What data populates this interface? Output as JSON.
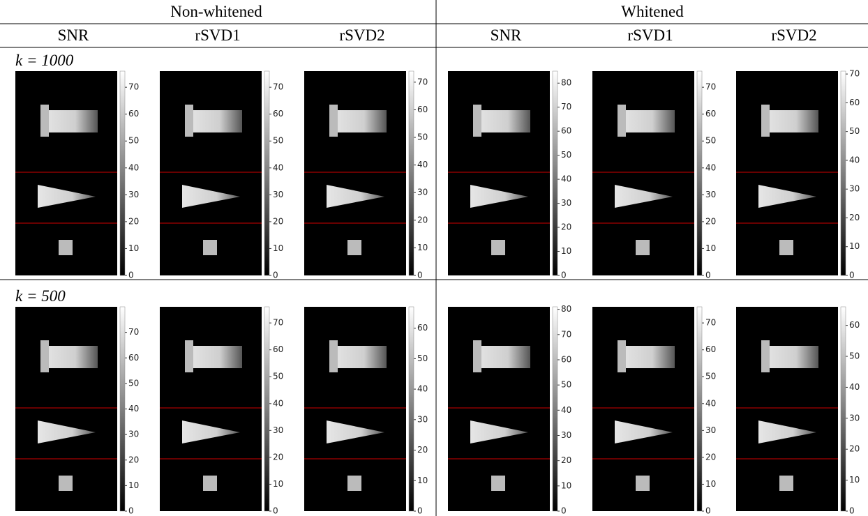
{
  "header": {
    "groups": [
      "Non-whitened",
      "Whitened"
    ],
    "columns": [
      "SNR",
      "rSVD1",
      "rSVD2",
      "SNR",
      "rSVD1",
      "rSVD2"
    ]
  },
  "rows": [
    {
      "label": "k = 1000",
      "panels": [
        {
          "clim": [
            0,
            76
          ],
          "ticks": [
            0,
            10,
            20,
            30,
            40,
            50,
            60,
            70
          ]
        },
        {
          "clim": [
            0,
            76
          ],
          "ticks": [
            0,
            10,
            20,
            30,
            40,
            50,
            60,
            70
          ]
        },
        {
          "clim": [
            0,
            74
          ],
          "ticks": [
            0,
            10,
            20,
            30,
            40,
            50,
            60,
            70
          ]
        },
        {
          "clim": [
            0,
            85
          ],
          "ticks": [
            0,
            10,
            20,
            30,
            40,
            50,
            60,
            70,
            80
          ]
        },
        {
          "clim": [
            0,
            76
          ],
          "ticks": [
            0,
            10,
            20,
            30,
            40,
            50,
            60,
            70
          ]
        },
        {
          "clim": [
            0,
            71
          ],
          "ticks": [
            0,
            10,
            20,
            30,
            40,
            50,
            60,
            70
          ]
        }
      ]
    },
    {
      "label": "k = 500",
      "panels": [
        {
          "clim": [
            0,
            80
          ],
          "ticks": [
            0,
            10,
            20,
            30,
            40,
            50,
            60,
            70
          ]
        },
        {
          "clim": [
            0,
            76
          ],
          "ticks": [
            0,
            10,
            20,
            30,
            40,
            50,
            60,
            70
          ]
        },
        {
          "clim": [
            0,
            67
          ],
          "ticks": [
            0,
            10,
            20,
            30,
            40,
            50,
            60
          ]
        },
        {
          "clim": [
            0,
            81
          ],
          "ticks": [
            0,
            10,
            20,
            30,
            40,
            50,
            60,
            70,
            80
          ]
        },
        {
          "clim": [
            0,
            76
          ],
          "ticks": [
            0,
            10,
            20,
            30,
            40,
            50,
            60,
            70
          ]
        },
        {
          "clim": [
            0,
            66
          ],
          "ticks": [
            0,
            10,
            20,
            30,
            40,
            50,
            60
          ]
        }
      ]
    }
  ]
}
